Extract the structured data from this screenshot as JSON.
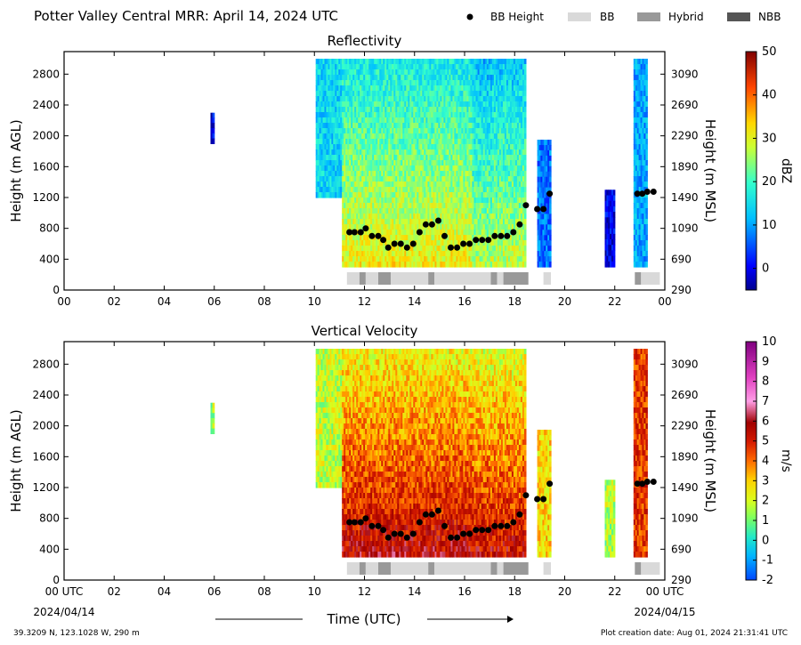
{
  "header": {
    "title": "Potter Valley Central MRR:  April 14, 2024 UTC",
    "legend": [
      {
        "label": "BB Height",
        "swatch": "dot",
        "color": "#000000"
      },
      {
        "label": "BB",
        "swatch": "rect",
        "color": "#d9d9d9"
      },
      {
        "label": "Hybrid",
        "swatch": "rect",
        "color": "#999999"
      },
      {
        "label": "NBB",
        "swatch": "rect",
        "color": "#555555"
      }
    ]
  },
  "footer": {
    "location": "39.3209 N, 123.1028 W, 290 m",
    "creation": "Plot creation date: Aug 01, 2024 21:31:41 UTC",
    "xlabel": "Time (UTC)",
    "start_time": "00 UTC",
    "start_date": "2024/04/14",
    "end_time": "00 UTC",
    "end_date": "2024/04/15"
  },
  "chart_data": [
    {
      "type": "heatmap",
      "title": "Reflectivity",
      "ylabel": "Height (m AGL)",
      "y2label": "Height (m MSL)",
      "xlim": [
        0,
        24
      ],
      "ylim": [
        0,
        3000
      ],
      "xticks": [
        "00",
        "02",
        "04",
        "06",
        "08",
        "10",
        "12",
        "14",
        "16",
        "18",
        "20",
        "22",
        "00"
      ],
      "yticks": [
        "0",
        "400",
        "800",
        "1200",
        "1600",
        "2000",
        "2400",
        "2800"
      ],
      "y2ticks": [
        "290",
        "690",
        "1090",
        "1490",
        "1890",
        "2290",
        "2690",
        "3090"
      ],
      "colorbar": {
        "label": "dBZ",
        "range": [
          -5,
          50
        ],
        "ticks": [
          "0",
          "10",
          "20",
          "30",
          "40",
          "50"
        ]
      },
      "echo_regions": [
        {
          "x": [
            5.85,
            6.0
          ],
          "y": [
            1900,
            2300
          ],
          "level": 0.1
        },
        {
          "x": [
            10.05,
            11.1
          ],
          "y": [
            1200,
            3000
          ],
          "level": 0.35
        },
        {
          "x": [
            11.1,
            16.3
          ],
          "y": [
            300,
            3000
          ],
          "level": 0.38
        },
        {
          "x": [
            16.3,
            17.1
          ],
          "y": [
            300,
            3000
          ],
          "level": 0.3
        },
        {
          "x": [
            17.1,
            18.45
          ],
          "y": [
            300,
            3000
          ],
          "level": 0.32
        },
        {
          "x": [
            18.9,
            19.45
          ],
          "y": [
            300,
            1950
          ],
          "level": 0.22
        },
        {
          "x": [
            21.6,
            22.0
          ],
          "y": [
            300,
            1300
          ],
          "level": 0.08
        },
        {
          "x": [
            22.75,
            23.3
          ],
          "y": [
            300,
            3000
          ],
          "level": 0.28
        }
      ],
      "bb_height": {
        "x": [
          11.4,
          11.6,
          11.85,
          12.05,
          12.3,
          12.55,
          12.75,
          12.95,
          13.2,
          13.45,
          13.7,
          13.95,
          14.2,
          14.45,
          14.7,
          14.95,
          15.2,
          15.45,
          15.7,
          15.95,
          16.2,
          16.45,
          16.7,
          16.95,
          17.2,
          17.45,
          17.7,
          17.95,
          18.2,
          18.45,
          18.9,
          19.15,
          19.4,
          22.9,
          23.1,
          23.3,
          23.55
        ],
        "y": [
          750,
          750,
          750,
          800,
          700,
          700,
          650,
          550,
          600,
          600,
          550,
          600,
          750,
          850,
          850,
          900,
          700,
          550,
          550,
          600,
          600,
          650,
          650,
          650,
          700,
          700,
          700,
          750,
          850,
          1100,
          1050,
          1050,
          1250,
          1250,
          1250,
          1275,
          1275
        ]
      },
      "bb_type": [
        {
          "start": 11.3,
          "end": 11.8,
          "type": "BB"
        },
        {
          "start": 11.8,
          "end": 12.05,
          "type": "Hybrid"
        },
        {
          "start": 12.05,
          "end": 12.55,
          "type": "BB"
        },
        {
          "start": 12.55,
          "end": 13.05,
          "type": "Hybrid"
        },
        {
          "start": 13.05,
          "end": 14.55,
          "type": "BB"
        },
        {
          "start": 14.55,
          "end": 14.8,
          "type": "Hybrid"
        },
        {
          "start": 14.8,
          "end": 17.05,
          "type": "BB"
        },
        {
          "start": 17.05,
          "end": 17.3,
          "type": "Hybrid"
        },
        {
          "start": 17.3,
          "end": 17.55,
          "type": "BB"
        },
        {
          "start": 17.55,
          "end": 18.55,
          "type": "Hybrid"
        },
        {
          "start": 19.15,
          "end": 19.45,
          "type": "BB"
        },
        {
          "start": 22.8,
          "end": 23.05,
          "type": "Hybrid"
        },
        {
          "start": 23.05,
          "end": 23.8,
          "type": "BB"
        }
      ]
    },
    {
      "type": "heatmap",
      "title": "Vertical Velocity",
      "ylabel": "Height (m AGL)",
      "y2label": "Height (m MSL)",
      "xlim": [
        0,
        24
      ],
      "ylim": [
        0,
        3000
      ],
      "xticks": [
        "00 UTC",
        "02",
        "04",
        "06",
        "08",
        "10",
        "12",
        "14",
        "16",
        "18",
        "20",
        "22",
        "00 UTC"
      ],
      "yticks": [
        "0",
        "400",
        "800",
        "1200",
        "1600",
        "2000",
        "2400",
        "2800"
      ],
      "y2ticks": [
        "290",
        "690",
        "1090",
        "1490",
        "1890",
        "2290",
        "2690",
        "3090"
      ],
      "colorbar": {
        "label": "m/s",
        "range": [
          -2,
          10
        ],
        "ticks": [
          "-2",
          "-1",
          "0",
          "1",
          "2",
          "3",
          "4",
          "5",
          "6",
          "7",
          "8",
          "9",
          "10"
        ]
      },
      "echo_regions": [
        {
          "x": [
            5.85,
            6.0
          ],
          "y": [
            1900,
            2300
          ],
          "level": 0.3
        },
        {
          "x": [
            10.05,
            11.1
          ],
          "y": [
            1200,
            3000
          ],
          "level": 0.32
        },
        {
          "x": [
            11.1,
            16.3
          ],
          "y": [
            300,
            3000
          ],
          "level": 0.36
        },
        {
          "x": [
            16.3,
            17.1
          ],
          "y": [
            300,
            3000
          ],
          "level": 0.34
        },
        {
          "x": [
            17.1,
            18.45
          ],
          "y": [
            300,
            3000
          ],
          "level": 0.34
        },
        {
          "x": [
            18.9,
            19.45
          ],
          "y": [
            300,
            1950
          ],
          "level": 0.4
        },
        {
          "x": [
            21.6,
            22.0
          ],
          "y": [
            300,
            1300
          ],
          "level": 0.3
        },
        {
          "x": [
            22.75,
            23.3
          ],
          "y": [
            300,
            3000
          ],
          "level": 0.55
        }
      ],
      "bb_height": {
        "x": [
          11.4,
          11.6,
          11.85,
          12.05,
          12.3,
          12.55,
          12.75,
          12.95,
          13.2,
          13.45,
          13.7,
          13.95,
          14.2,
          14.45,
          14.7,
          14.95,
          15.2,
          15.45,
          15.7,
          15.95,
          16.2,
          16.45,
          16.7,
          16.95,
          17.2,
          17.45,
          17.7,
          17.95,
          18.2,
          18.45,
          18.9,
          19.15,
          19.4,
          22.9,
          23.1,
          23.3,
          23.55
        ],
        "y": [
          750,
          750,
          750,
          800,
          700,
          700,
          650,
          550,
          600,
          600,
          550,
          600,
          750,
          850,
          850,
          900,
          700,
          550,
          550,
          600,
          600,
          650,
          650,
          650,
          700,
          700,
          700,
          750,
          850,
          1100,
          1050,
          1050,
          1250,
          1250,
          1250,
          1275,
          1275
        ]
      },
      "bb_type": [
        {
          "start": 11.3,
          "end": 11.8,
          "type": "BB"
        },
        {
          "start": 11.8,
          "end": 12.05,
          "type": "Hybrid"
        },
        {
          "start": 12.05,
          "end": 12.55,
          "type": "BB"
        },
        {
          "start": 12.55,
          "end": 13.05,
          "type": "Hybrid"
        },
        {
          "start": 13.05,
          "end": 14.55,
          "type": "BB"
        },
        {
          "start": 14.55,
          "end": 14.8,
          "type": "Hybrid"
        },
        {
          "start": 14.8,
          "end": 17.05,
          "type": "BB"
        },
        {
          "start": 17.05,
          "end": 17.3,
          "type": "Hybrid"
        },
        {
          "start": 17.3,
          "end": 17.55,
          "type": "BB"
        },
        {
          "start": 17.55,
          "end": 18.55,
          "type": "Hybrid"
        },
        {
          "start": 19.15,
          "end": 19.45,
          "type": "BB"
        },
        {
          "start": 22.8,
          "end": 23.05,
          "type": "Hybrid"
        },
        {
          "start": 23.05,
          "end": 23.8,
          "type": "BB"
        }
      ]
    }
  ]
}
